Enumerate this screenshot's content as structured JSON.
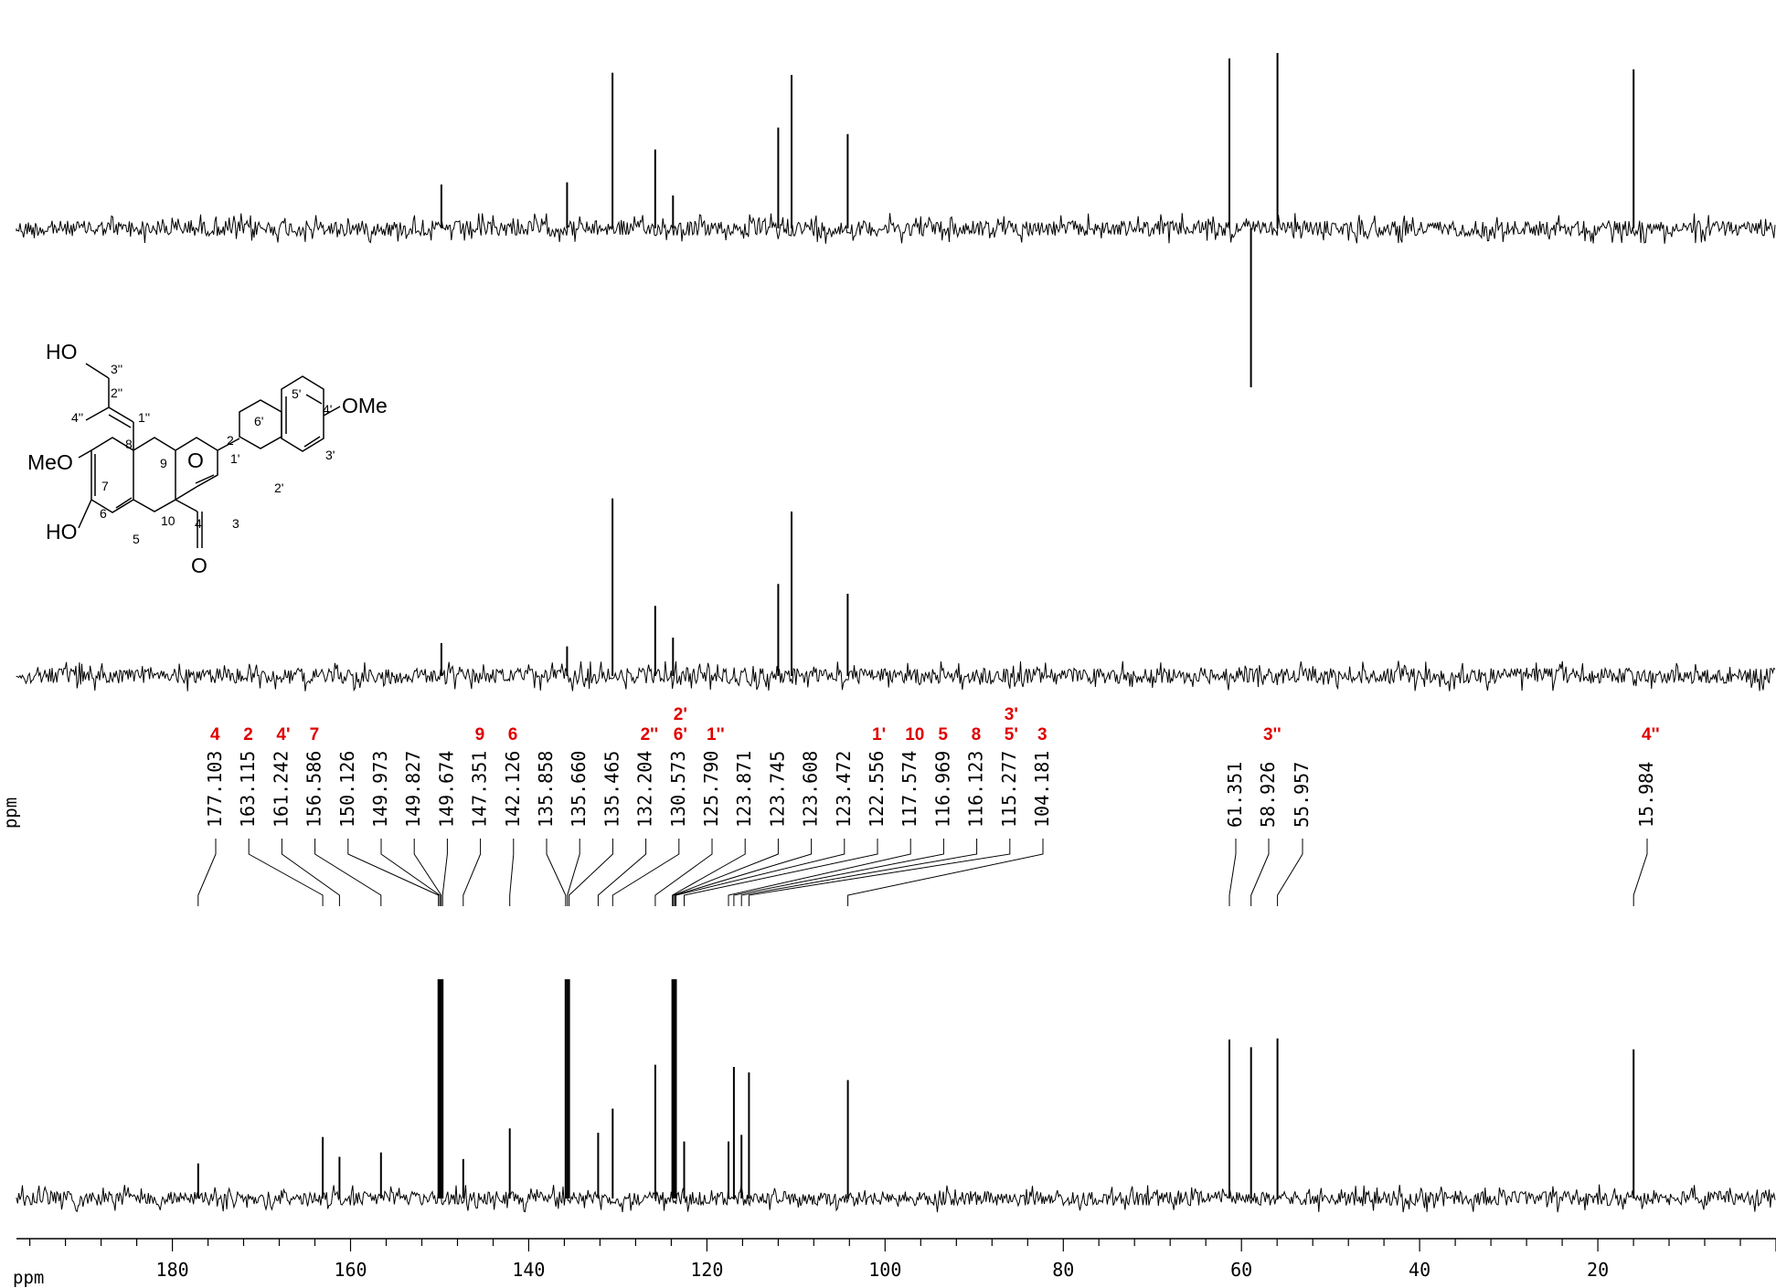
{
  "chart_data": {
    "type": "line",
    "title": "",
    "xlabel": "ppm",
    "ylabel": "ppm",
    "xlim": [
      197.5,
      0
    ],
    "x_ticks": [
      180,
      160,
      140,
      120,
      100,
      80,
      60,
      40,
      20
    ],
    "x_tick_labels": [
      "180",
      "160",
      "140",
      "120",
      "100",
      "80",
      "60",
      "40",
      "20"
    ],
    "grid": false,
    "legend": "none",
    "colors": {
      "trace": "#000000",
      "assignment": "#e00000"
    },
    "series": [
      {
        "kind": "DEPT-135",
        "peaks": [
          {
            "x": 149.8,
            "y": 0.4
          },
          {
            "x": 135.7,
            "y": 0.42
          },
          {
            "x": 130.6,
            "y": 1.42
          },
          {
            "x": 125.8,
            "y": 0.72
          },
          {
            "x": 123.8,
            "y": 0.3
          },
          {
            "x": 112.0,
            "y": 0.92
          },
          {
            "x": 110.5,
            "y": 1.4
          },
          {
            "x": 104.2,
            "y": 0.86
          },
          {
            "x": 61.35,
            "y": 1.55
          },
          {
            "x": 58.93,
            "y": -1.45
          },
          {
            "x": 55.96,
            "y": 1.6
          },
          {
            "x": 15.98,
            "y": 1.45
          }
        ]
      },
      {
        "kind": "DEPT-90",
        "peaks": [
          {
            "x": 149.8,
            "y": 0.3
          },
          {
            "x": 135.7,
            "y": 0.27
          },
          {
            "x": 130.6,
            "y": 1.62
          },
          {
            "x": 125.8,
            "y": 0.64
          },
          {
            "x": 123.8,
            "y": 0.35
          },
          {
            "x": 112.0,
            "y": 0.84
          },
          {
            "x": 110.5,
            "y": 1.5
          },
          {
            "x": 104.2,
            "y": 0.75
          }
        ]
      },
      {
        "kind": "13C",
        "peaks": [
          {
            "x": 177.103,
            "y": 0.32
          },
          {
            "x": 163.115,
            "y": 0.56
          },
          {
            "x": 161.242,
            "y": 0.38
          },
          {
            "x": 156.586,
            "y": 0.42
          },
          {
            "x": 150.126,
            "y": 2.0
          },
          {
            "x": 149.973,
            "y": 2.0
          },
          {
            "x": 149.827,
            "y": 2.0
          },
          {
            "x": 149.674,
            "y": 2.0
          },
          {
            "x": 147.351,
            "y": 0.36
          },
          {
            "x": 142.126,
            "y": 0.64
          },
          {
            "x": 135.858,
            "y": 2.0
          },
          {
            "x": 135.66,
            "y": 2.0
          },
          {
            "x": 135.465,
            "y": 2.0
          },
          {
            "x": 132.204,
            "y": 0.6
          },
          {
            "x": 130.573,
            "y": 0.82
          },
          {
            "x": 125.79,
            "y": 1.22
          },
          {
            "x": 123.871,
            "y": 2.0
          },
          {
            "x": 123.745,
            "y": 2.0
          },
          {
            "x": 123.608,
            "y": 2.0
          },
          {
            "x": 123.472,
            "y": 2.0
          },
          {
            "x": 122.556,
            "y": 0.52
          },
          {
            "x": 117.574,
            "y": 0.52
          },
          {
            "x": 116.969,
            "y": 1.2
          },
          {
            "x": 116.123,
            "y": 0.58
          },
          {
            "x": 115.277,
            "y": 1.15
          },
          {
            "x": 104.181,
            "y": 1.08
          },
          {
            "x": 61.351,
            "y": 1.45
          },
          {
            "x": 58.926,
            "y": 1.38
          },
          {
            "x": 55.957,
            "y": 1.46
          },
          {
            "x": 15.984,
            "y": 1.36
          }
        ]
      }
    ],
    "peak_labels": [
      "177.103",
      "163.115",
      "161.242",
      "156.586",
      "150.126",
      "149.973",
      "149.827",
      "149.674",
      "147.351",
      "142.126",
      "135.858",
      "135.660",
      "135.465",
      "132.204",
      "130.573",
      "125.790",
      "123.871",
      "123.745",
      "123.608",
      "123.472",
      "122.556",
      "117.574",
      "116.969",
      "116.123",
      "115.277",
      "104.181",
      "61.351",
      "58.926",
      "55.957",
      "15.984"
    ],
    "assignments": [
      {
        "label": "4",
        "ppm": "177.103"
      },
      {
        "label": "2",
        "ppm": "163.115"
      },
      {
        "label": "4'",
        "ppm": "161.242"
      },
      {
        "label": "7",
        "ppm": "156.586"
      },
      {
        "label": "9",
        "ppm": "147.351"
      },
      {
        "label": "6",
        "ppm": "142.126"
      },
      {
        "label": "2''",
        "ppm": "132.204"
      },
      {
        "label": "2'",
        "label2": "6'",
        "ppm": "130.573"
      },
      {
        "label": "1''",
        "ppm": "125.790"
      },
      {
        "label": "1'",
        "ppm": "122.556"
      },
      {
        "label": "10",
        "ppm": "117.574"
      },
      {
        "label": "5",
        "ppm": "116.969"
      },
      {
        "label": "8",
        "ppm": "116.123"
      },
      {
        "label": "3'",
        "label2": "5'",
        "ppm": "115.277"
      },
      {
        "label": "3",
        "ppm": "104.181"
      },
      {
        "label": "3''",
        "ppm": "58.926"
      },
      {
        "label": "4''",
        "ppm": "15.984"
      }
    ]
  },
  "structure": {
    "groups": {
      "ho_top": "HO",
      "ome_right": "OMe",
      "meo_left": "MeO",
      "ho_left": "HO",
      "ring_o": "O",
      "carbonyl_o": "O"
    },
    "locants": [
      "3''",
      "2''",
      "4''",
      "1''",
      "8",
      "9",
      "2",
      "1'",
      "6'",
      "5'",
      "4'",
      "3'",
      "2'",
      "7",
      "6",
      "5",
      "10",
      "4",
      "3"
    ]
  }
}
